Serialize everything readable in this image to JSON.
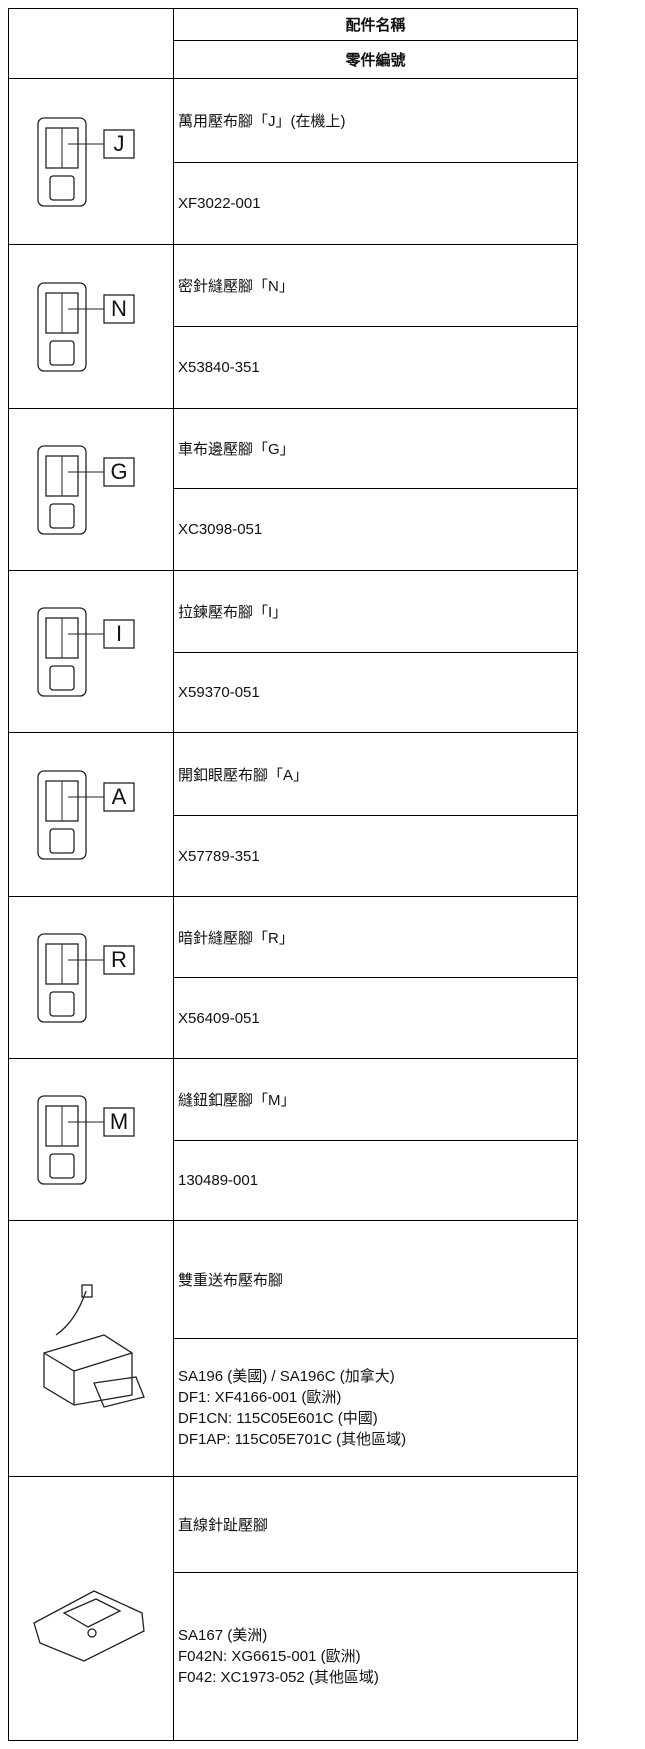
{
  "header": {
    "name_col": "配件名稱",
    "part_col": "零件編號"
  },
  "rows": [
    {
      "icon_label": "J",
      "name": "萬用壓布腳「J」(在機上)",
      "part": [
        "XF3022-001"
      ]
    },
    {
      "icon_label": "N",
      "name": "密針縫壓腳「N」",
      "part": [
        "X53840-351"
      ]
    },
    {
      "icon_label": "G",
      "name": "車布邊壓腳「G」",
      "part": [
        "XC3098-051"
      ]
    },
    {
      "icon_label": "I",
      "name": "拉鍊壓布腳「I」",
      "part": [
        "X59370-051"
      ]
    },
    {
      "icon_label": "A",
      "name": "開釦眼壓布腳「A」",
      "part": [
        "X57789-351"
      ]
    },
    {
      "icon_label": "R",
      "name": "暗針縫壓腳「R」",
      "part": [
        "X56409-051"
      ]
    },
    {
      "icon_label": "M",
      "name": "縫鈕釦壓腳「M」",
      "part": [
        "130489-001"
      ]
    },
    {
      "name": "雙重送布壓布腳",
      "part": [
        "SA196 (美國) / SA196C (加拿大)",
        "DF1: XF4166-001 (歐洲)",
        "DF1CN: 115C05E601C (中國)",
        "DF1AP: 115C05E701C (其他區域)"
      ]
    },
    {
      "name": "直線針趾壓腳",
      "part": [
        "SA167 (美洲)",
        "F042N: XG6615-001 (歐洲)",
        "F042: XC1973-052 (其他區域)"
      ]
    }
  ]
}
